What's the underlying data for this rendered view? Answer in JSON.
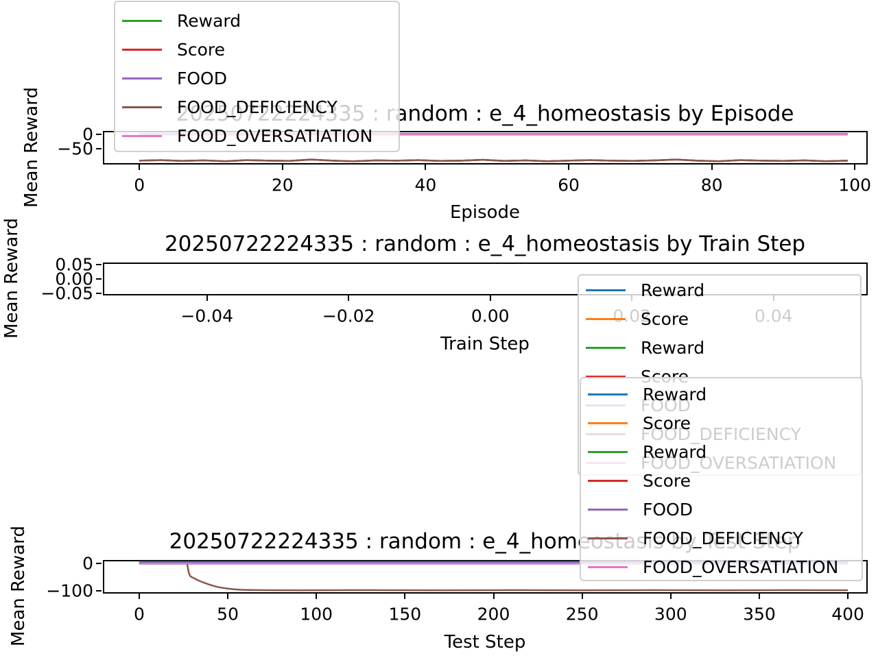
{
  "figure": {
    "background": "#ffffff"
  },
  "chart_data": [
    {
      "type": "line",
      "title": "20250722224335 : random : e_4_homeostasis by Episode",
      "xlabel": "Episode",
      "ylabel": "Mean Reward",
      "xlim": [
        -5.1,
        101.8
      ],
      "ylim": [
        -103,
        11
      ],
      "grid": false,
      "xticks": [
        {
          "v": 0,
          "label": "0"
        },
        {
          "v": 20,
          "label": "20"
        },
        {
          "v": 40,
          "label": "40"
        },
        {
          "v": 60,
          "label": "60"
        },
        {
          "v": 80,
          "label": "80"
        },
        {
          "v": 100,
          "label": "100"
        }
      ],
      "yticks": [
        {
          "v": 0,
          "label": "0"
        },
        {
          "v": -50,
          "label": "−50"
        }
      ],
      "legend": {
        "position": "upper-left, overlapping title and plot, semi-transparent",
        "entries": [
          {
            "label": "Reward",
            "color": "#2ca02c"
          },
          {
            "label": "Score",
            "color": "#d62728"
          },
          {
            "label": "FOOD",
            "color": "#9467bd"
          },
          {
            "label": "FOOD_DEFICIENCY",
            "color": "#8c564b"
          },
          {
            "label": "FOOD_OVERSATIATION",
            "color": "#e377c2"
          }
        ]
      },
      "series": [
        {
          "name": "Reward",
          "color": "#2ca02c",
          "x": [
            0,
            3,
            6,
            9,
            12,
            15,
            18,
            21,
            24,
            27,
            30,
            33,
            36,
            39,
            42,
            45,
            48,
            51,
            54,
            57,
            60,
            63,
            66,
            69,
            72,
            75,
            78,
            81,
            84,
            87,
            90,
            93,
            96,
            99
          ],
          "y": [
            -90,
            -88,
            -91,
            -89,
            -92,
            -88,
            -90,
            -91,
            -86,
            -90,
            -92,
            -89,
            -90,
            -88,
            -91,
            -90,
            -87,
            -91,
            -89,
            -92,
            -90,
            -88,
            -90,
            -91,
            -89,
            -86,
            -90,
            -92,
            -88,
            -90,
            -91,
            -89,
            -92,
            -90
          ]
        },
        {
          "name": "Score",
          "color": "#d62728",
          "x": [
            0,
            3,
            6,
            9,
            12,
            15,
            18,
            21,
            24,
            27,
            30,
            33,
            36,
            39,
            42,
            45,
            48,
            51,
            54,
            57,
            60,
            63,
            66,
            69,
            72,
            75,
            78,
            81,
            84,
            87,
            90,
            93,
            96,
            99
          ],
          "y": [
            -90,
            -88,
            -91,
            -89,
            -92,
            -88,
            -90,
            -91,
            -86,
            -90,
            -92,
            -89,
            -90,
            -88,
            -91,
            -90,
            -87,
            -91,
            -89,
            -92,
            -90,
            -88,
            -90,
            -91,
            -89,
            -86,
            -90,
            -92,
            -88,
            -90,
            -91,
            -89,
            -92,
            -90
          ]
        },
        {
          "name": "FOOD",
          "color": "#9467bd",
          "x": [
            0,
            99
          ],
          "y": [
            0,
            0
          ]
        },
        {
          "name": "FOOD_DEFICIENCY",
          "color": "#8c564b",
          "x": [
            0,
            3,
            6,
            9,
            12,
            15,
            18,
            21,
            24,
            27,
            30,
            33,
            36,
            39,
            42,
            45,
            48,
            51,
            54,
            57,
            60,
            63,
            66,
            69,
            72,
            75,
            78,
            81,
            84,
            87,
            90,
            93,
            96,
            99
          ],
          "y": [
            -90,
            -88,
            -91,
            -89,
            -92,
            -88,
            -90,
            -91,
            -86,
            -90,
            -92,
            -89,
            -90,
            -88,
            -91,
            -90,
            -87,
            -91,
            -89,
            -92,
            -90,
            -88,
            -90,
            -91,
            -89,
            -86,
            -90,
            -92,
            -88,
            -90,
            -91,
            -89,
            -92,
            -90
          ]
        },
        {
          "name": "FOOD_OVERSATIATION",
          "color": "#e377c2",
          "x": [
            0,
            99
          ],
          "y": [
            0,
            0
          ]
        }
      ]
    },
    {
      "type": "line",
      "title": "20250722224335 : random : e_4_homeostasis by Train Step",
      "xlabel": "Train Step",
      "ylabel": "Mean Reward",
      "xlim": [
        -0.0547,
        0.0533
      ],
      "ylim": [
        -0.0577,
        0.0577
      ],
      "grid": false,
      "xticks": [
        {
          "v": -0.04,
          "label": "−0.04"
        },
        {
          "v": -0.02,
          "label": "−0.02"
        },
        {
          "v": 0.0,
          "label": "0.00"
        },
        {
          "v": 0.02,
          "label": "0.02"
        },
        {
          "v": 0.04,
          "label": "0.04"
        }
      ],
      "yticks": [
        {
          "v": 0.05,
          "label": "0.05"
        },
        {
          "v": 0.0,
          "label": "0.00"
        },
        {
          "v": -0.05,
          "label": "−0.05"
        }
      ],
      "legend": {
        "position": "right, below axes, semi-transparent, partly covered by test-step legend",
        "entries": [
          {
            "label": "Reward",
            "color": "#1f77b4"
          },
          {
            "label": "Score",
            "color": "#ff7f0e"
          },
          {
            "label": "Reward",
            "color": "#2ca02c"
          },
          {
            "label": "Score",
            "color": "#d62728"
          },
          {
            "label": "FOOD",
            "color": "#9467bd"
          },
          {
            "label": "FOOD_DEFICIENCY",
            "color": "#8c564b"
          },
          {
            "label": "FOOD_OVERSATIATION",
            "color": "#e377c2"
          }
        ]
      },
      "series": []
    },
    {
      "type": "line",
      "title": "20250722224335 : random : e_4_homeostasis by Test Step",
      "xlabel": "Test Step",
      "ylabel": "Mean Reward",
      "xlim": [
        -20.5,
        411.2
      ],
      "ylim": [
        -110,
        12.5
      ],
      "grid": false,
      "xticks": [
        {
          "v": 0,
          "label": "0"
        },
        {
          "v": 50,
          "label": "50"
        },
        {
          "v": 100,
          "label": "100"
        },
        {
          "v": 150,
          "label": "150"
        },
        {
          "v": 200,
          "label": "200"
        },
        {
          "v": 250,
          "label": "250"
        },
        {
          "v": 300,
          "label": "300"
        },
        {
          "v": 350,
          "label": "350"
        },
        {
          "v": 400,
          "label": "400"
        }
      ],
      "yticks": [
        {
          "v": 0,
          "label": "0"
        },
        {
          "v": -100,
          "label": "−100"
        }
      ],
      "legend": {
        "position": "upper-right above axes, semi-transparent, overlapping title and train-step legend",
        "entries": [
          {
            "label": "Reward",
            "color": "#1f77b4"
          },
          {
            "label": "Score",
            "color": "#ff7f0e"
          },
          {
            "label": "Reward",
            "color": "#2ca02c"
          },
          {
            "label": "Score",
            "color": "#d62728"
          },
          {
            "label": "FOOD",
            "color": "#9467bd"
          },
          {
            "label": "FOOD_DEFICIENCY",
            "color": "#8c564b"
          },
          {
            "label": "FOOD_OVERSATIATION",
            "color": "#e377c2"
          }
        ]
      },
      "series": [
        {
          "name": "Reward",
          "color": "#1f77b4",
          "x": [
            0,
            400
          ],
          "y": [
            0,
            0
          ]
        },
        {
          "name": "Score",
          "color": "#ff7f0e",
          "x": [
            0,
            400
          ],
          "y": [
            0,
            0
          ]
        },
        {
          "name": "Reward",
          "color": "#2ca02c",
          "x": [
            0,
            400
          ],
          "y": [
            0,
            0
          ]
        },
        {
          "name": "Score",
          "color": "#d62728",
          "x": [
            0,
            400
          ],
          "y": [
            0,
            0
          ]
        },
        {
          "name": "FOOD",
          "color": "#9467bd",
          "x": [
            0,
            400
          ],
          "y": [
            0,
            0
          ]
        },
        {
          "name": "FOOD_DEFICIENCY",
          "color": "#8c564b",
          "x": [
            0,
            27,
            28,
            29,
            31,
            33,
            36,
            39,
            42,
            45,
            49,
            53,
            57,
            62,
            70,
            90,
            130,
            170,
            210,
            250,
            290,
            330,
            370,
            400
          ],
          "y": [
            0,
            0,
            -35,
            -48,
            -54,
            -61,
            -69,
            -76,
            -82,
            -87,
            -91,
            -94,
            -96,
            -97,
            -97.5,
            -98,
            -97.5,
            -98,
            -97.5,
            -98,
            -97.5,
            -98,
            -97.5,
            -97.8
          ]
        },
        {
          "name": "FOOD_OVERSATIATION",
          "color": "#e377c2",
          "x": [
            0,
            400
          ],
          "y": [
            0,
            0
          ]
        }
      ]
    }
  ]
}
